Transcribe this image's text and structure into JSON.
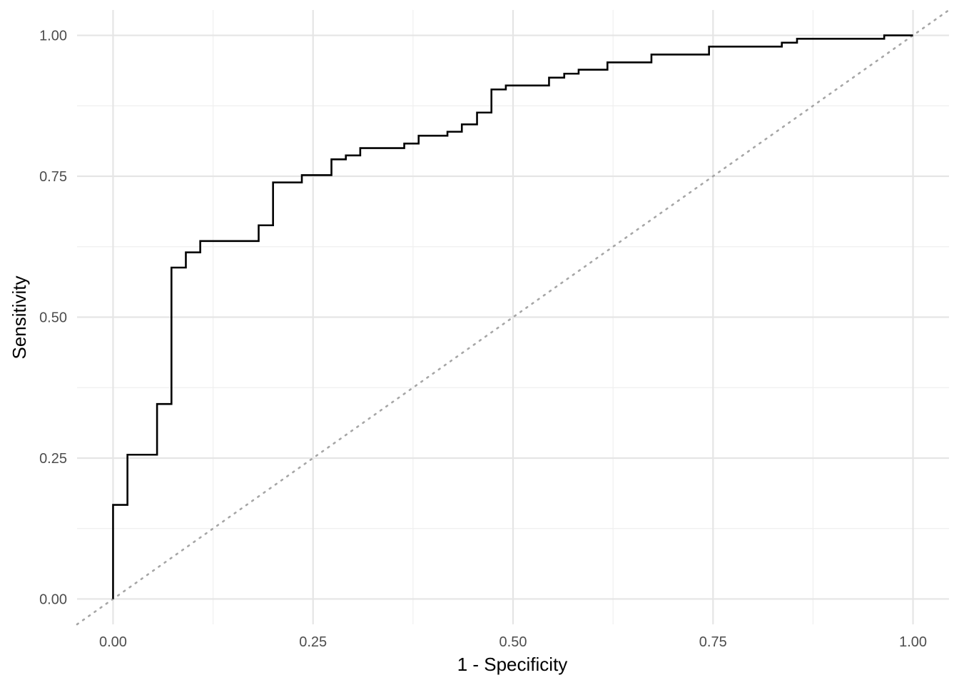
{
  "chart_data": {
    "type": "line",
    "title": "",
    "xlabel": "1 - Specificity",
    "ylabel": "Sensitivity",
    "xlim": [
      -0.045,
      1.045
    ],
    "ylim": [
      -0.045,
      1.045
    ],
    "x_ticks": [
      0,
      0.25,
      0.5,
      0.75,
      1
    ],
    "y_ticks": [
      0,
      0.25,
      0.5,
      0.75,
      1
    ],
    "x_tick_labels": [
      "0.00",
      "0.25",
      "0.50",
      "0.75",
      "1.00"
    ],
    "y_tick_labels": [
      "0.00",
      "0.25",
      "0.50",
      "0.75",
      "1.00"
    ],
    "grid": true,
    "legend": "none",
    "roc_curve": {
      "color": "#000000",
      "step": true,
      "points": [
        [
          0.0,
          0.0
        ],
        [
          0.0,
          0.167
        ],
        [
          0.018,
          0.167
        ],
        [
          0.018,
          0.256
        ],
        [
          0.055,
          0.256
        ],
        [
          0.055,
          0.346
        ],
        [
          0.073,
          0.346
        ],
        [
          0.073,
          0.588
        ],
        [
          0.091,
          0.588
        ],
        [
          0.091,
          0.615
        ],
        [
          0.109,
          0.615
        ],
        [
          0.109,
          0.635
        ],
        [
          0.182,
          0.635
        ],
        [
          0.182,
          0.663
        ],
        [
          0.2,
          0.663
        ],
        [
          0.2,
          0.739
        ],
        [
          0.236,
          0.739
        ],
        [
          0.236,
          0.752
        ],
        [
          0.273,
          0.752
        ],
        [
          0.273,
          0.78
        ],
        [
          0.291,
          0.78
        ],
        [
          0.291,
          0.787
        ],
        [
          0.309,
          0.787
        ],
        [
          0.309,
          0.8
        ],
        [
          0.364,
          0.8
        ],
        [
          0.364,
          0.808
        ],
        [
          0.382,
          0.808
        ],
        [
          0.382,
          0.822
        ],
        [
          0.418,
          0.822
        ],
        [
          0.418,
          0.829
        ],
        [
          0.436,
          0.829
        ],
        [
          0.436,
          0.842
        ],
        [
          0.455,
          0.842
        ],
        [
          0.455,
          0.863
        ],
        [
          0.473,
          0.863
        ],
        [
          0.473,
          0.904
        ],
        [
          0.491,
          0.904
        ],
        [
          0.491,
          0.911
        ],
        [
          0.545,
          0.911
        ],
        [
          0.545,
          0.925
        ],
        [
          0.564,
          0.925
        ],
        [
          0.564,
          0.932
        ],
        [
          0.582,
          0.932
        ],
        [
          0.582,
          0.939
        ],
        [
          0.618,
          0.939
        ],
        [
          0.618,
          0.952
        ],
        [
          0.673,
          0.952
        ],
        [
          0.673,
          0.966
        ],
        [
          0.745,
          0.966
        ],
        [
          0.745,
          0.98
        ],
        [
          0.836,
          0.98
        ],
        [
          0.836,
          0.987
        ],
        [
          0.855,
          0.987
        ],
        [
          0.855,
          0.994
        ],
        [
          0.964,
          0.994
        ],
        [
          0.964,
          1.0
        ],
        [
          1.0,
          1.0
        ]
      ]
    },
    "reference_line": {
      "type": "diagonal",
      "style": "dotted",
      "color": "#a6a6a6",
      "slope": 1,
      "intercept": 0
    }
  }
}
